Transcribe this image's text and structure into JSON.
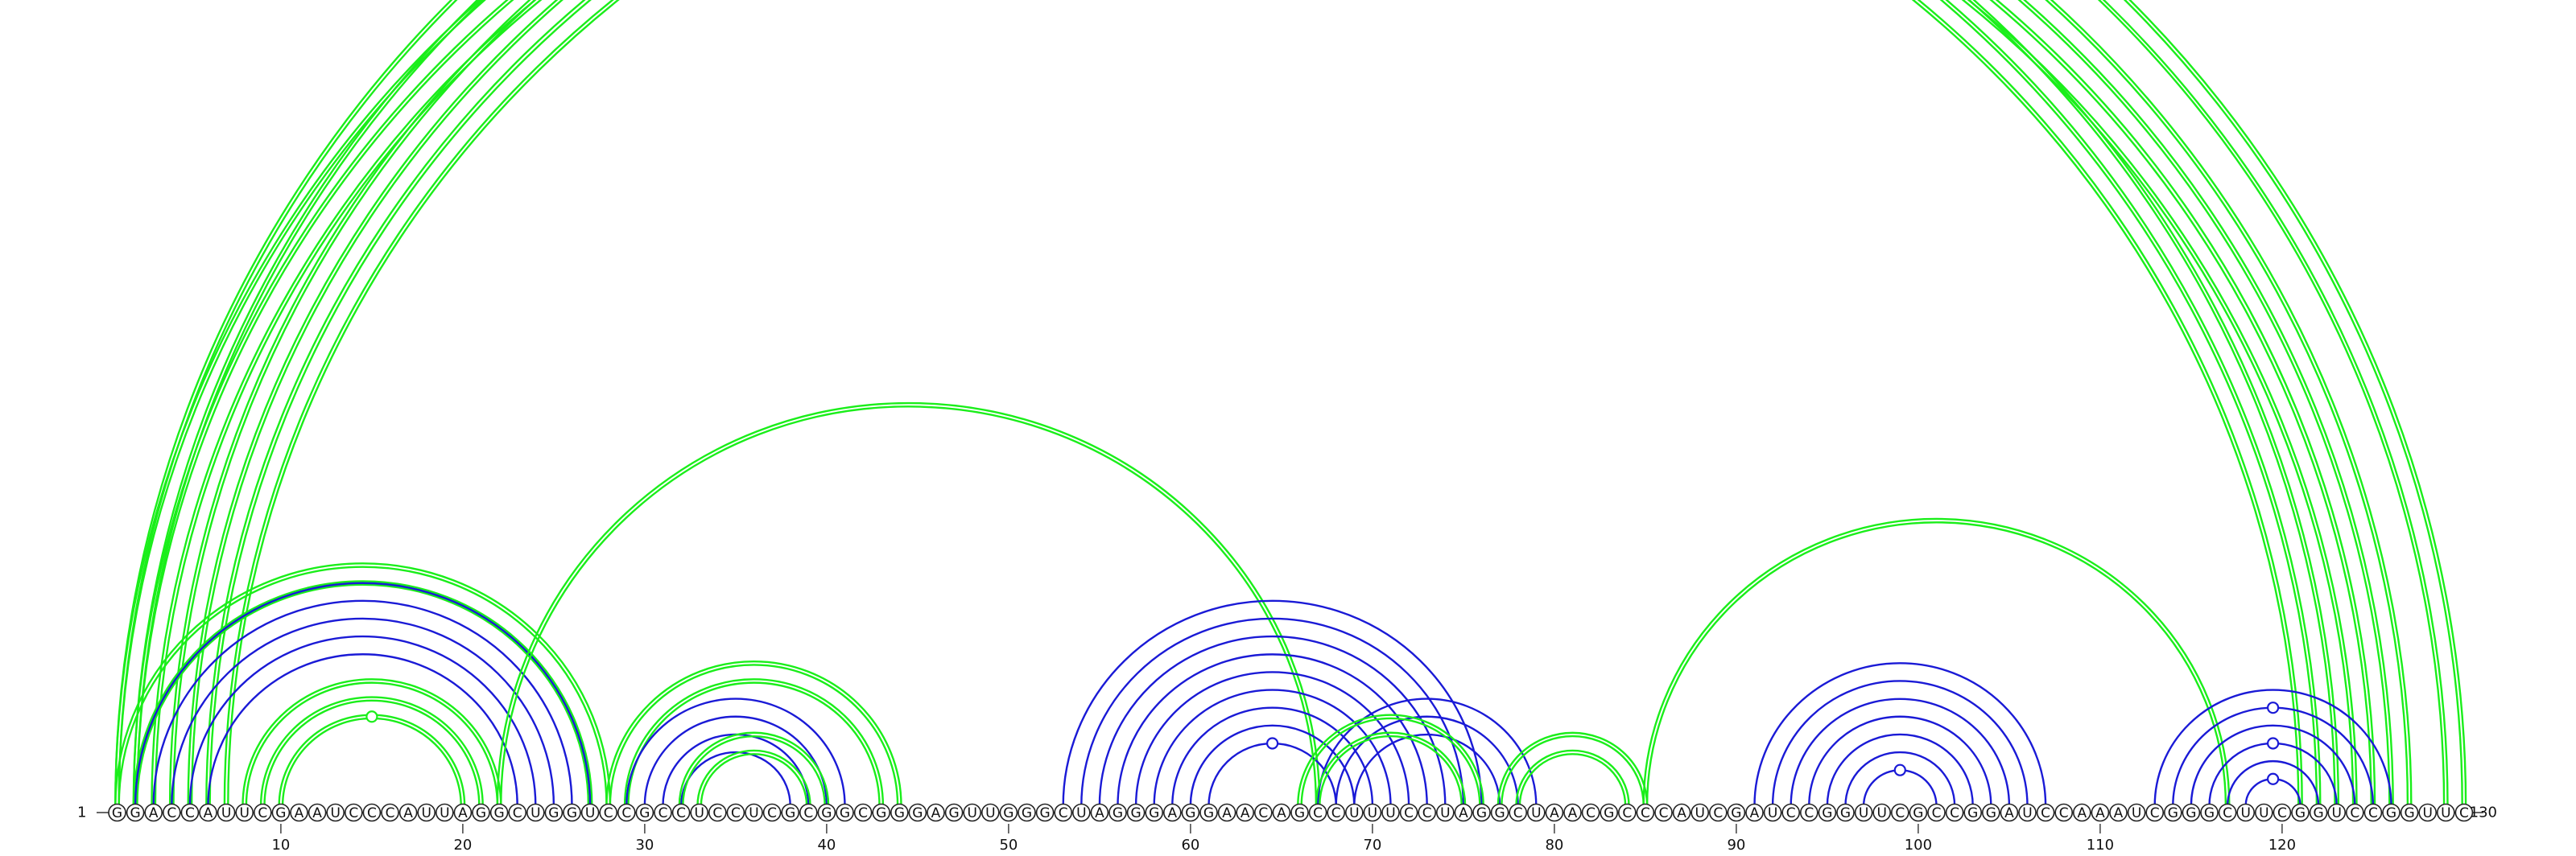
{
  "chart_data": {
    "type": "arc-diagram",
    "sequence": "GGACCAUUCGAAUCCCAUUAGGCUGGUCCGCCUCCUCGCGGCGGGAGUUGGGCUAGGGAGGAACAGCCUUUCCUAGGCUAACGCCCAUCGAUCCGGUUCGCCGGAUCCAAAUCGGGCUUCGGUCCGGUUC",
    "start_label": "1",
    "end_label": "130",
    "ticks": [
      10,
      20,
      30,
      40,
      50,
      60,
      70,
      80,
      90,
      100,
      110,
      120
    ],
    "colors": {
      "blue": "#1a1ad6",
      "green": "#1aee1a"
    },
    "arcs": [
      {
        "i": 1,
        "j": 123,
        "c": "green",
        "d": true
      },
      {
        "i": 2,
        "j": 122,
        "c": "green",
        "d": true
      },
      {
        "i": 3,
        "j": 121,
        "c": "green",
        "d": true
      },
      {
        "i": 4,
        "j": 127,
        "c": "green",
        "d": true
      },
      {
        "i": 5,
        "j": 126,
        "c": "green",
        "d": true
      },
      {
        "i": 6,
        "j": 125,
        "c": "green",
        "d": true
      },
      {
        "i": 7,
        "j": 124,
        "c": "green",
        "d": true
      },
      {
        "i": 1,
        "j": 130,
        "c": "green",
        "d": true
      },
      {
        "i": 2,
        "j": 129,
        "c": "green",
        "d": true
      },
      {
        "i": 1,
        "j": 28,
        "c": "green",
        "d": true
      },
      {
        "i": 2,
        "j": 27,
        "c": "green",
        "d": true
      },
      {
        "i": 2,
        "j": 27,
        "c": "blue",
        "d": false
      },
      {
        "i": 3,
        "j": 26,
        "c": "blue",
        "d": false
      },
      {
        "i": 4,
        "j": 25,
        "c": "blue",
        "d": false
      },
      {
        "i": 5,
        "j": 24,
        "c": "blue",
        "d": false
      },
      {
        "i": 6,
        "j": 23,
        "c": "blue",
        "d": false
      },
      {
        "i": 8,
        "j": 22,
        "c": "green",
        "d": true
      },
      {
        "i": 9,
        "j": 21,
        "c": "green",
        "d": true
      },
      {
        "i": 10,
        "j": 20,
        "c": "green",
        "d": true
      },
      {
        "i": 22,
        "j": 67,
        "c": "green",
        "d": true
      },
      {
        "i": 28,
        "j": 44,
        "c": "green",
        "d": true
      },
      {
        "i": 29,
        "j": 43,
        "c": "green",
        "d": true
      },
      {
        "i": 29,
        "j": 41,
        "c": "blue",
        "d": false
      },
      {
        "i": 30,
        "j": 40,
        "c": "blue",
        "d": false
      },
      {
        "i": 31,
        "j": 39,
        "c": "blue",
        "d": false
      },
      {
        "i": 32,
        "j": 38,
        "c": "blue",
        "d": false
      },
      {
        "i": 32,
        "j": 40,
        "c": "green",
        "d": true
      },
      {
        "i": 33,
        "j": 39,
        "c": "green",
        "d": true
      },
      {
        "i": 53,
        "j": 76,
        "c": "blue",
        "d": false
      },
      {
        "i": 54,
        "j": 75,
        "c": "blue",
        "d": false
      },
      {
        "i": 55,
        "j": 74,
        "c": "blue",
        "d": false
      },
      {
        "i": 56,
        "j": 73,
        "c": "blue",
        "d": false
      },
      {
        "i": 57,
        "j": 72,
        "c": "blue",
        "d": false
      },
      {
        "i": 58,
        "j": 71,
        "c": "blue",
        "d": false
      },
      {
        "i": 59,
        "j": 70,
        "c": "blue",
        "d": false
      },
      {
        "i": 60,
        "j": 69,
        "c": "blue",
        "d": false
      },
      {
        "i": 61,
        "j": 68,
        "c": "blue",
        "d": false
      },
      {
        "i": 67,
        "j": 79,
        "c": "blue",
        "d": false
      },
      {
        "i": 68,
        "j": 78,
        "c": "blue",
        "d": false
      },
      {
        "i": 69,
        "j": 77,
        "c": "blue",
        "d": false
      },
      {
        "i": 66,
        "j": 76,
        "c": "green",
        "d": true
      },
      {
        "i": 67,
        "j": 75,
        "c": "green",
        "d": true
      },
      {
        "i": 77,
        "j": 85,
        "c": "green",
        "d": true
      },
      {
        "i": 78,
        "j": 84,
        "c": "green",
        "d": true
      },
      {
        "i": 85,
        "j": 117,
        "c": "green",
        "d": true
      },
      {
        "i": 91,
        "j": 107,
        "c": "blue",
        "d": false
      },
      {
        "i": 92,
        "j": 106,
        "c": "blue",
        "d": false
      },
      {
        "i": 93,
        "j": 105,
        "c": "blue",
        "d": false
      },
      {
        "i": 94,
        "j": 104,
        "c": "blue",
        "d": false
      },
      {
        "i": 95,
        "j": 103,
        "c": "blue",
        "d": false
      },
      {
        "i": 96,
        "j": 102,
        "c": "blue",
        "d": false
      },
      {
        "i": 97,
        "j": 101,
        "c": "blue",
        "d": false
      },
      {
        "i": 113,
        "j": 126,
        "c": "blue",
        "d": false
      },
      {
        "i": 114,
        "j": 125,
        "c": "blue",
        "d": false
      },
      {
        "i": 115,
        "j": 124,
        "c": "blue",
        "d": false
      },
      {
        "i": 116,
        "j": 123,
        "c": "blue",
        "d": false
      },
      {
        "i": 117,
        "j": 122,
        "c": "blue",
        "d": false
      },
      {
        "i": 118,
        "j": 121,
        "c": "blue",
        "d": false
      }
    ],
    "markers": [
      {
        "i": 1,
        "j": 130,
        "c": "green"
      },
      {
        "i": 10,
        "j": 20,
        "c": "green"
      },
      {
        "i": 61,
        "j": 68,
        "c": "blue"
      },
      {
        "i": 97,
        "j": 101,
        "c": "blue"
      },
      {
        "i": 114,
        "j": 125,
        "c": "blue"
      },
      {
        "i": 116,
        "j": 123,
        "c": "blue"
      },
      {
        "i": 118,
        "j": 121,
        "c": "blue"
      }
    ]
  }
}
